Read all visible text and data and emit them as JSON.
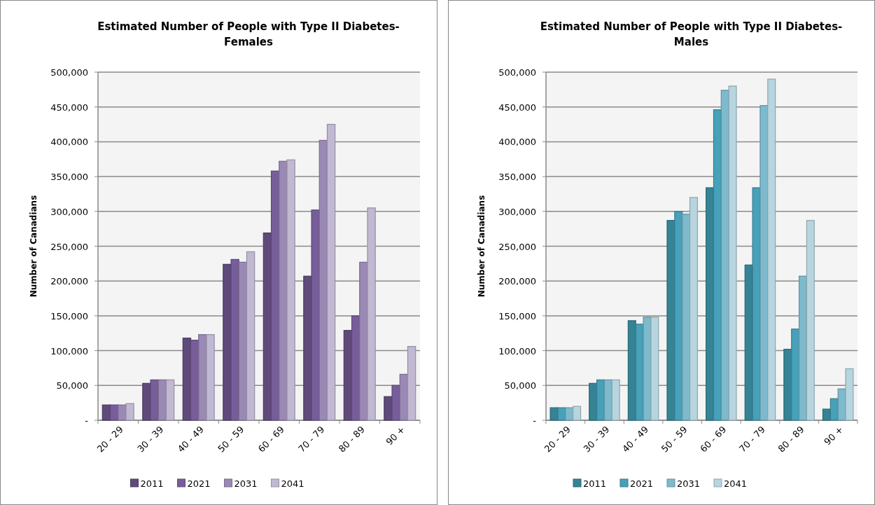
{
  "chart_data": [
    {
      "type": "bar",
      "title": "Estimated Number of People with Type II Diabetes-\nFemales",
      "ylabel": "Number of Canadians",
      "categories": [
        "20 - 29",
        "30 - 39",
        "40 - 49",
        "50 - 59",
        "60 - 69",
        "70 - 79",
        "80 - 89",
        "90 +"
      ],
      "series": [
        {
          "name": "2011",
          "color": "#604a7b",
          "values": [
            22000,
            53000,
            118000,
            224000,
            269000,
            207000,
            129000,
            34000
          ]
        },
        {
          "name": "2021",
          "color": "#775e9a",
          "values": [
            22000,
            58000,
            115000,
            231000,
            358000,
            302000,
            150000,
            50000
          ]
        },
        {
          "name": "2031",
          "color": "#9b89b5",
          "values": [
            22000,
            58000,
            123000,
            227000,
            372000,
            402000,
            227000,
            66000
          ]
        },
        {
          "name": "2041",
          "color": "#c1b8d1",
          "values": [
            24000,
            58000,
            123000,
            242000,
            374000,
            425000,
            305000,
            106000
          ]
        }
      ],
      "ylim": [
        0,
        500000
      ],
      "yticks": [
        {
          "value": 0,
          "label": "-"
        },
        {
          "value": 50000,
          "label": "50,000"
        },
        {
          "value": 100000,
          "label": "100,000"
        },
        {
          "value": 150000,
          "label": "150,000"
        },
        {
          "value": 200000,
          "label": "200,000"
        },
        {
          "value": 250000,
          "label": "250,000"
        },
        {
          "value": 300000,
          "label": "300,000"
        },
        {
          "value": 350000,
          "label": "350,000"
        },
        {
          "value": 400000,
          "label": "400,000"
        },
        {
          "value": 450000,
          "label": "450,000"
        },
        {
          "value": 500000,
          "label": "500,000"
        }
      ],
      "grid": "y",
      "legend": "bottom"
    },
    {
      "type": "bar",
      "title": "Estimated Number of People with Type II Diabetes-\nMales",
      "ylabel": "Number of Canadians",
      "categories": [
        "20 - 29",
        "30 - 39",
        "40 - 49",
        "50 - 59",
        "60 - 69",
        "70 - 79",
        "80 - 89",
        "90 +"
      ],
      "series": [
        {
          "name": "2011",
          "color": "#358496",
          "values": [
            18000,
            53000,
            143000,
            287000,
            334000,
            223000,
            102000,
            16000
          ]
        },
        {
          "name": "2021",
          "color": "#46a1b9",
          "values": [
            18000,
            58000,
            138000,
            300000,
            446000,
            334000,
            131000,
            31000
          ]
        },
        {
          "name": "2031",
          "color": "#7ebacd",
          "values": [
            18000,
            58000,
            148000,
            296000,
            474000,
            452000,
            207000,
            45000
          ]
        },
        {
          "name": "2041",
          "color": "#b7d5df",
          "values": [
            20000,
            58000,
            148000,
            320000,
            480000,
            490000,
            287000,
            74000
          ]
        }
      ],
      "ylim": [
        0,
        500000
      ],
      "yticks": [
        {
          "value": 0,
          "label": "-"
        },
        {
          "value": 50000,
          "label": "50,000"
        },
        {
          "value": 100000,
          "label": "100,000"
        },
        {
          "value": 150000,
          "label": "150,000"
        },
        {
          "value": 200000,
          "label": "200,000"
        },
        {
          "value": 250000,
          "label": "250,000"
        },
        {
          "value": 300000,
          "label": "300,000"
        },
        {
          "value": 350000,
          "label": "350,000"
        },
        {
          "value": 400000,
          "label": "400,000"
        },
        {
          "value": 450000,
          "label": "450,000"
        },
        {
          "value": 500000,
          "label": "500,000"
        }
      ],
      "grid": "y",
      "legend": "bottom"
    }
  ]
}
